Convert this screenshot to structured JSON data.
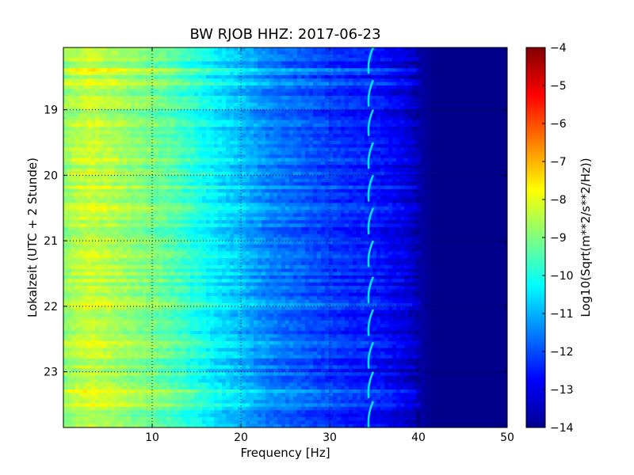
{
  "chart_data": {
    "type": "heatmap",
    "title": "BW RJOB HHZ: 2017-06-23",
    "xlabel": "Frequency [Hz]",
    "ylabel": "Lokalzeit (UTC + 2 Stunde)",
    "xlim": [
      0,
      50
    ],
    "ylim": [
      18.05,
      23.85
    ],
    "y_inverted": true,
    "x_ticks": [
      10,
      20,
      30,
      40,
      50
    ],
    "x_tick_labels": [
      "10",
      "20",
      "30",
      "40",
      "50"
    ],
    "y_ticks": [
      19,
      20,
      21,
      22,
      23
    ],
    "y_tick_labels": [
      "19",
      "20",
      "21",
      "22",
      "23"
    ],
    "grid": true,
    "grid_style": "dotted",
    "colormap": "jet",
    "colorbar": {
      "label": "Log10(Sqrt(m**2/s**2/Hz))",
      "range": [
        -14,
        -4
      ],
      "ticks": [
        -4,
        -5,
        -6,
        -7,
        -8,
        -9,
        -10,
        -11,
        -12,
        -13,
        -14
      ],
      "tick_labels": [
        "−4",
        "−5",
        "−6",
        "−7",
        "−8",
        "−9",
        "−10",
        "−11",
        "−12",
        "−13",
        "−14"
      ]
    },
    "frequency_profile": {
      "frequency_hz": [
        0,
        1,
        3,
        5,
        8,
        10,
        12,
        14,
        16,
        18,
        20,
        22,
        24,
        26,
        28,
        30,
        32,
        34,
        36,
        38,
        40,
        41,
        42,
        50
      ],
      "level": [
        -8.9,
        -8.6,
        -8.3,
        -8.5,
        -8.9,
        -9.1,
        -9.4,
        -9.8,
        -10.2,
        -10.6,
        -10.9,
        -11.3,
        -11.6,
        -11.8,
        -12.0,
        -12.2,
        -12.4,
        -12.5,
        -12.7,
        -13.0,
        -13.5,
        -13.8,
        -13.9,
        -13.9
      ]
    },
    "spectral_line": {
      "frequency_hz": 34.4,
      "level": -10.5,
      "burst_hours": [
        18.25,
        18.75,
        19.2,
        19.7,
        20.2,
        20.7,
        21.2,
        21.75,
        22.25,
        22.75,
        23.2,
        23.65
      ]
    }
  }
}
